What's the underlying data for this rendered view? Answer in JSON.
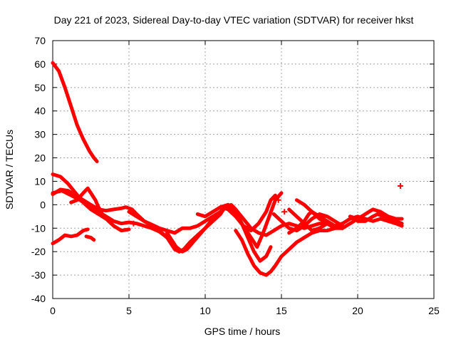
{
  "chart_data": {
    "type": "scatter",
    "title": "Day 221 of 2023, Sidereal Day-to-day VTEC variation (SDTVAR) for receiver hkst",
    "xlabel": "GPS time / hours",
    "ylabel": "SDTVAR / TECUs",
    "xlim": [
      0,
      25
    ],
    "ylim": [
      -40,
      70
    ],
    "xticks": [
      0,
      5,
      10,
      15,
      20,
      25
    ],
    "yticks": [
      -40,
      -30,
      -20,
      -10,
      0,
      10,
      20,
      30,
      40,
      50,
      60,
      70
    ],
    "grid": true,
    "color": "#ff0000",
    "series": [
      {
        "name": "track-1",
        "points": [
          [
            0.0,
            60.5
          ],
          [
            0.4,
            57
          ],
          [
            0.8,
            50
          ],
          [
            1.2,
            42
          ],
          [
            1.6,
            34
          ],
          [
            2.0,
            28
          ],
          [
            2.4,
            23
          ],
          [
            2.7,
            20
          ],
          [
            2.9,
            18.5
          ]
        ]
      },
      {
        "name": "track-2",
        "points": [
          [
            0.0,
            13
          ],
          [
            0.5,
            12
          ],
          [
            1.0,
            9
          ],
          [
            1.5,
            5
          ],
          [
            2.0,
            1
          ],
          [
            2.5,
            -2
          ],
          [
            3.0,
            -4
          ],
          [
            3.5,
            -6
          ],
          [
            4.0,
            -9
          ],
          [
            4.5,
            -11
          ],
          [
            5.0,
            -10.5
          ]
        ]
      },
      {
        "name": "track-3",
        "points": [
          [
            0.0,
            4.5
          ],
          [
            0.5,
            6.5
          ],
          [
            1.0,
            6
          ],
          [
            1.5,
            4
          ],
          [
            2.0,
            2
          ],
          [
            2.5,
            0
          ],
          [
            3.0,
            -2
          ],
          [
            3.5,
            -2.5
          ],
          [
            4.0,
            -2
          ],
          [
            4.5,
            -1.5
          ],
          [
            4.8,
            -1
          ],
          [
            5.2,
            -2
          ],
          [
            5.5,
            -4
          ],
          [
            6.0,
            -7
          ],
          [
            6.5,
            -9
          ],
          [
            7.0,
            -11
          ],
          [
            7.5,
            -14
          ],
          [
            7.8,
            -17
          ],
          [
            8.0,
            -19
          ],
          [
            8.3,
            -20
          ]
        ]
      },
      {
        "name": "track-4",
        "points": [
          [
            0.0,
            5
          ],
          [
            0.6,
            6
          ],
          [
            1.2,
            4
          ],
          [
            1.8,
            2
          ],
          [
            2.4,
            -1
          ],
          [
            3.0,
            -3
          ],
          [
            3.5,
            -5
          ],
          [
            4.0,
            -7
          ],
          [
            4.5,
            -8
          ],
          [
            5.0,
            -7.5
          ],
          [
            5.5,
            -8
          ],
          [
            6.0,
            -9
          ],
          [
            6.5,
            -10
          ],
          [
            7.0,
            -11.5
          ],
          [
            7.5,
            -14
          ]
        ]
      },
      {
        "name": "track-5",
        "points": [
          [
            0.0,
            -16.5
          ],
          [
            0.4,
            -15
          ],
          [
            0.8,
            -13
          ],
          [
            1.2,
            -13.5
          ],
          [
            1.6,
            -13
          ],
          [
            2.0,
            -11
          ],
          [
            2.3,
            -10.5
          ]
        ]
      },
      {
        "name": "track-6",
        "points": [
          [
            2.2,
            -13.5
          ],
          [
            2.5,
            -14
          ],
          [
            2.7,
            -15
          ]
        ]
      },
      {
        "name": "track-7",
        "points": [
          [
            1.2,
            1
          ],
          [
            1.6,
            2
          ],
          [
            2.0,
            5
          ],
          [
            2.3,
            7
          ],
          [
            2.5,
            5
          ],
          [
            2.8,
            2
          ],
          [
            3.0,
            -1
          ],
          [
            3.2,
            -3
          ]
        ]
      },
      {
        "name": "track-8",
        "points": [
          [
            5.0,
            -3
          ],
          [
            5.5,
            -5
          ],
          [
            6.0,
            -7
          ],
          [
            6.5,
            -8.5
          ],
          [
            7.0,
            -10
          ],
          [
            7.5,
            -11
          ],
          [
            8.0,
            -12
          ],
          [
            8.5,
            -10
          ],
          [
            9.0,
            -10
          ],
          [
            9.5,
            -9
          ],
          [
            10.0,
            -7
          ],
          [
            10.5,
            -5
          ],
          [
            11.0,
            -3
          ],
          [
            11.3,
            -1
          ],
          [
            11.7,
            0
          ],
          [
            12.0,
            -2
          ],
          [
            12.5,
            -6
          ],
          [
            13.0,
            -10
          ],
          [
            13.5,
            -12
          ],
          [
            14.0,
            -13
          ],
          [
            14.5,
            -11
          ],
          [
            15.0,
            -9
          ],
          [
            15.5,
            -8
          ],
          [
            16.0,
            -9
          ],
          [
            16.5,
            -10
          ],
          [
            17.0,
            -9
          ],
          [
            17.5,
            -8
          ],
          [
            18.0,
            -8
          ],
          [
            18.5,
            -9
          ],
          [
            19.0,
            -10
          ]
        ]
      },
      {
        "name": "track-9",
        "points": [
          [
            8.3,
            -20
          ],
          [
            8.6,
            -19
          ],
          [
            9.0,
            -16
          ],
          [
            9.5,
            -13
          ],
          [
            10.0,
            -10
          ],
          [
            10.5,
            -7
          ],
          [
            11.0,
            -4
          ],
          [
            11.2,
            -2
          ]
        ]
      },
      {
        "name": "track-10",
        "points": [
          [
            7.5,
            -12
          ],
          [
            7.8,
            -15
          ],
          [
            8.1,
            -18
          ],
          [
            8.5,
            -20
          ],
          [
            8.8,
            -19
          ],
          [
            9.2,
            -16
          ],
          [
            9.6,
            -13
          ],
          [
            10.0,
            -10
          ],
          [
            10.5,
            -6
          ],
          [
            11.0,
            -3
          ],
          [
            11.5,
            0
          ],
          [
            12.0,
            -3
          ],
          [
            12.4,
            -8
          ],
          [
            12.8,
            -14
          ],
          [
            13.2,
            -20
          ],
          [
            13.6,
            -24
          ],
          [
            14.0,
            -22
          ],
          [
            14.3,
            -18
          ]
        ]
      },
      {
        "name": "track-11",
        "points": [
          [
            12.0,
            -11
          ],
          [
            12.4,
            -15
          ],
          [
            12.8,
            -21
          ],
          [
            13.2,
            -26
          ],
          [
            13.6,
            -29
          ],
          [
            14.0,
            -30
          ],
          [
            14.3,
            -28.5
          ],
          [
            14.6,
            -26
          ],
          [
            15.0,
            -22
          ],
          [
            15.5,
            -19
          ],
          [
            16.0,
            -16
          ],
          [
            16.5,
            -14
          ],
          [
            17.0,
            -12
          ],
          [
            17.5,
            -11
          ],
          [
            18.0,
            -11
          ],
          [
            18.5,
            -10
          ],
          [
            19.0,
            -9
          ]
        ]
      },
      {
        "name": "track-12",
        "points": [
          [
            9.5,
            -4
          ],
          [
            10.0,
            -5
          ],
          [
            10.5,
            -3
          ],
          [
            11.0,
            -1
          ],
          [
            11.5,
            0
          ],
          [
            12.0,
            -4
          ],
          [
            12.5,
            -9
          ],
          [
            13.0,
            -14
          ],
          [
            13.4,
            -18
          ],
          [
            13.8,
            -12
          ],
          [
            14.2,
            -5
          ],
          [
            14.6,
            2
          ],
          [
            15.0,
            5
          ]
        ]
      },
      {
        "name": "track-13",
        "points": [
          [
            11.0,
            -1
          ],
          [
            11.5,
            -2
          ],
          [
            12.0,
            -5
          ],
          [
            12.5,
            -9
          ],
          [
            13.0,
            -11
          ],
          [
            13.5,
            -8
          ],
          [
            14.0,
            -3
          ],
          [
            14.3,
            2
          ],
          [
            14.6,
            4
          ]
        ]
      },
      {
        "name": "track-14",
        "points": [
          [
            14.5,
            -4
          ],
          [
            15.0,
            -7
          ],
          [
            15.5,
            -10
          ],
          [
            16.0,
            -11
          ],
          [
            16.5,
            -9
          ],
          [
            17.0,
            -6
          ],
          [
            17.5,
            -4
          ],
          [
            18.0,
            -5
          ],
          [
            18.5,
            -7
          ],
          [
            19.0,
            -9
          ]
        ]
      },
      {
        "name": "track-15",
        "points": [
          [
            15.5,
            -2
          ],
          [
            16.0,
            -5
          ],
          [
            16.5,
            -8
          ],
          [
            17.0,
            -11
          ],
          [
            17.5,
            -10
          ],
          [
            18.0,
            -8
          ],
          [
            18.5,
            -9
          ],
          [
            19.0,
            -10
          ],
          [
            19.5,
            -8
          ],
          [
            20.0,
            -6
          ]
        ]
      },
      {
        "name": "track-16",
        "points": [
          [
            15.5,
            -12
          ],
          [
            16.0,
            -10
          ],
          [
            16.5,
            -7
          ],
          [
            16.8,
            -4
          ],
          [
            17.0,
            -3
          ],
          [
            17.5,
            -5
          ],
          [
            18.0,
            -7
          ],
          [
            18.5,
            -9
          ],
          [
            19.0,
            -8
          ]
        ]
      },
      {
        "name": "track-17",
        "points": [
          [
            16.0,
            2
          ],
          [
            16.5,
            0
          ],
          [
            17.0,
            -3
          ],
          [
            17.5,
            -6
          ],
          [
            18.0,
            -8
          ],
          [
            18.5,
            -10
          ],
          [
            19.0,
            -10
          ]
        ]
      },
      {
        "name": "track-18",
        "points": [
          [
            19.0,
            -8
          ],
          [
            19.5,
            -6
          ],
          [
            20.0,
            -5
          ],
          [
            20.5,
            -6
          ],
          [
            21.0,
            -7
          ],
          [
            21.5,
            -6
          ],
          [
            22.0,
            -7
          ],
          [
            22.5,
            -8
          ],
          [
            22.9,
            -9
          ]
        ]
      },
      {
        "name": "track-19",
        "points": [
          [
            19.5,
            -5
          ],
          [
            20.0,
            -6
          ],
          [
            20.5,
            -4
          ],
          [
            21.0,
            -2
          ],
          [
            21.5,
            -3
          ],
          [
            22.0,
            -5
          ],
          [
            22.5,
            -6
          ],
          [
            22.9,
            -6
          ]
        ]
      },
      {
        "name": "track-20",
        "points": [
          [
            20.0,
            -7
          ],
          [
            20.5,
            -7
          ],
          [
            21.0,
            -5
          ],
          [
            21.3,
            -4
          ],
          [
            21.7,
            -5
          ],
          [
            22.0,
            -6
          ],
          [
            22.5,
            -7
          ],
          [
            22.9,
            -8
          ]
        ]
      }
    ],
    "isolated_points": [
      [
        22.8,
        8
      ],
      [
        14.8,
        2
      ],
      [
        15.2,
        -3
      ],
      [
        5.3,
        -8
      ]
    ]
  }
}
